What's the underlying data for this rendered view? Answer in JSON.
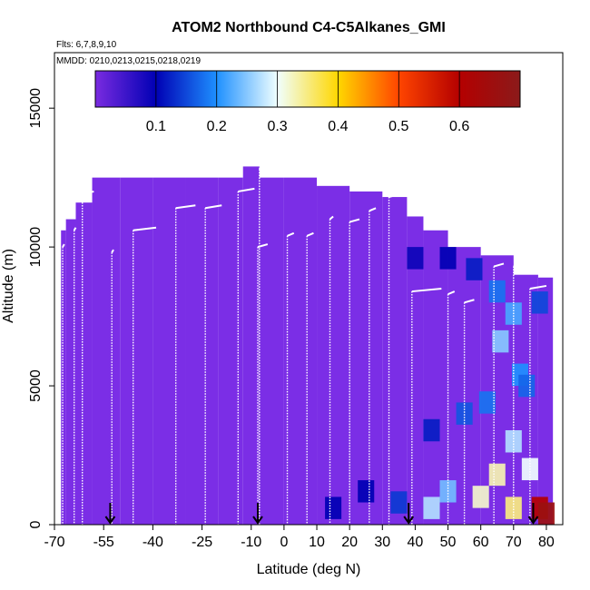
{
  "chart_data": {
    "type": "heatmap",
    "title": "ATOM2 Northbound C4-C5Alkanes_GMI",
    "flights_note": "Flts: 6,7,8,9,10",
    "dates_note": "MMDD: 0210,0213,0215,0218,0219",
    "xlabel": "Latitude (deg N)",
    "ylabel": "Altitude (m)",
    "xlim": [
      -70,
      85
    ],
    "ylim": [
      0,
      17000
    ],
    "x_ticks": [
      -70,
      -55,
      -40,
      -25,
      -10,
      0,
      10,
      20,
      30,
      40,
      50,
      60,
      70,
      80
    ],
    "x_tick_labels": [
      "-70",
      "-55",
      "-40",
      "-25",
      "-10",
      "0",
      "10",
      "20",
      "30",
      "40",
      "50",
      "60",
      "70",
      "80"
    ],
    "y_ticks": [
      0,
      5000,
      10000,
      15000
    ],
    "y_tick_labels": [
      "0",
      "5000",
      "10000",
      "15000"
    ],
    "colorbar": {
      "range": [
        0,
        0.7
      ],
      "ticks": [
        0.1,
        0.2,
        0.3,
        0.4,
        0.5,
        0.6
      ],
      "tick_labels": [
        "0.1",
        "0.2",
        "0.3",
        "0.4",
        "0.5",
        "0.6"
      ],
      "colors": [
        "#7a2be0",
        "#0000b4",
        "#1e90ff",
        "#f0ffff",
        "#ffd700",
        "#ff4500",
        "#b40000",
        "#8b1a1a"
      ]
    },
    "arrow_latitudes": [
      -53,
      -8,
      38,
      76
    ],
    "columns": [
      {
        "lat": -68,
        "top": 10600
      },
      {
        "lat": -65,
        "top": 11000
      },
      {
        "lat": -62,
        "top": 11600
      },
      {
        "lat": -55,
        "top": 12500
      },
      {
        "lat": -45,
        "top": 12500
      },
      {
        "lat": -35,
        "top": 12500
      },
      {
        "lat": -25,
        "top": 12500
      },
      {
        "lat": -15,
        "top": 12500
      },
      {
        "lat": -10,
        "top": 12900
      },
      {
        "lat": -5,
        "top": 12500
      },
      {
        "lat": 5,
        "top": 12500
      },
      {
        "lat": 15,
        "top": 12200
      },
      {
        "lat": 25,
        "top": 12000
      },
      {
        "lat": 35,
        "top": 11800
      },
      {
        "lat": 40,
        "top": 11100
      },
      {
        "lat": 45,
        "top": 10600
      },
      {
        "lat": 55,
        "top": 10000
      },
      {
        "lat": 65,
        "top": 9700
      },
      {
        "lat": 75,
        "top": 9000
      },
      {
        "lat": 80,
        "top": 8900
      }
    ],
    "cells": [
      {
        "lat": 40,
        "alt": 9600,
        "value": 0.09
      },
      {
        "lat": 50,
        "alt": 9600,
        "value": 0.1
      },
      {
        "lat": 58,
        "alt": 9200,
        "value": 0.12
      },
      {
        "lat": 65,
        "alt": 8400,
        "value": 0.18
      },
      {
        "lat": 70,
        "alt": 7600,
        "value": 0.22
      },
      {
        "lat": 78,
        "alt": 8000,
        "value": 0.15
      },
      {
        "lat": 66,
        "alt": 6600,
        "value": 0.25
      },
      {
        "lat": 72,
        "alt": 5400,
        "value": 0.2
      },
      {
        "lat": 62,
        "alt": 4400,
        "value": 0.18
      },
      {
        "lat": 70,
        "alt": 3000,
        "value": 0.27
      },
      {
        "lat": 75,
        "alt": 2000,
        "value": 0.3
      },
      {
        "lat": 65,
        "alt": 1800,
        "value": 0.33
      },
      {
        "lat": 60,
        "alt": 1000,
        "value": 0.32
      },
      {
        "lat": 70,
        "alt": 600,
        "value": 0.35
      },
      {
        "lat": 50,
        "alt": 1200,
        "value": 0.24
      },
      {
        "lat": 45,
        "alt": 600,
        "value": 0.27
      },
      {
        "lat": 35,
        "alt": 800,
        "value": 0.14
      },
      {
        "lat": 25,
        "alt": 1200,
        "value": 0.1
      },
      {
        "lat": 15,
        "alt": 600,
        "value": 0.1
      },
      {
        "lat": 55,
        "alt": 4000,
        "value": 0.16
      },
      {
        "lat": 45,
        "alt": 3400,
        "value": 0.12
      },
      {
        "lat": 78,
        "alt": 600,
        "value": 0.6
      },
      {
        "lat": 80,
        "alt": 400,
        "value": 0.66
      },
      {
        "lat": 74,
        "alt": 5000,
        "value": 0.17
      }
    ],
    "flight_profiles": [
      {
        "lat_a": -67.5,
        "lat_b": -67,
        "alt_top": 10000
      },
      {
        "lat_a": -64,
        "lat_b": -63.5,
        "alt_top": 10600
      },
      {
        "lat_a": -61.5,
        "lat_b": -58,
        "alt_top": 11900
      },
      {
        "lat_a": -52.5,
        "lat_b": -52,
        "alt_top": 9800
      },
      {
        "lat_a": -46,
        "lat_b": -39,
        "alt_top": 10600
      },
      {
        "lat_a": -33,
        "lat_b": -27,
        "alt_top": 11400
      },
      {
        "lat_a": -24,
        "lat_b": -19,
        "alt_top": 11400
      },
      {
        "lat_a": -14,
        "lat_b": -9,
        "alt_top": 12000
      },
      {
        "lat_a": -7.5,
        "lat_b": -7,
        "alt_top": 12800
      },
      {
        "lat_a": -8,
        "lat_b": -5,
        "alt_top": 10000
      },
      {
        "lat_a": 1,
        "lat_b": 3,
        "alt_top": 10400
      },
      {
        "lat_a": 7,
        "lat_b": 9,
        "alt_top": 10400
      },
      {
        "lat_a": 14,
        "lat_b": 15,
        "alt_top": 11000
      },
      {
        "lat_a": 20,
        "lat_b": 23,
        "alt_top": 10900
      },
      {
        "lat_a": 26,
        "lat_b": 28,
        "alt_top": 11300
      },
      {
        "lat_a": 32,
        "lat_b": 35,
        "alt_top": 11800
      },
      {
        "lat_a": 39,
        "lat_b": 48,
        "alt_top": 8400
      },
      {
        "lat_a": 50,
        "lat_b": 52,
        "alt_top": 8300
      },
      {
        "lat_a": 55,
        "lat_b": 58,
        "alt_top": 8000
      },
      {
        "lat_a": 64,
        "lat_b": 67,
        "alt_top": 9300
      },
      {
        "lat_a": 70,
        "lat_b": 72,
        "alt_top": 9300
      },
      {
        "lat_a": 75,
        "lat_b": 80,
        "alt_top": 8500
      }
    ]
  }
}
